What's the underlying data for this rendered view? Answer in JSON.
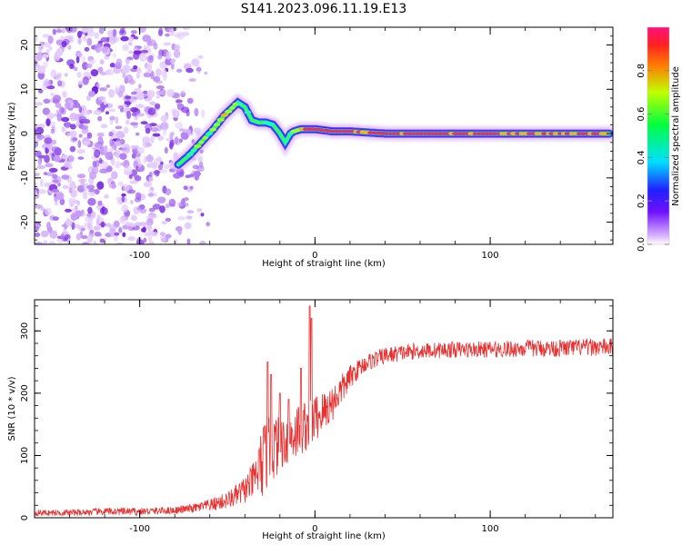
{
  "figure_title": "S141.2023.096.11.19.E13",
  "chart_data": [
    {
      "type": "heatmap",
      "title": "",
      "xlabel": "Height of straight line (km)",
      "ylabel": "Frequency (Hz)",
      "xlim": [
        -160,
        170
      ],
      "ylim": [
        -25,
        24
      ],
      "x_ticks": [
        {
          "value": -100,
          "label": "-100"
        },
        {
          "value": 0,
          "label": "0"
        },
        {
          "value": 100,
          "label": "100"
        }
      ],
      "y_ticks": [
        {
          "value": -20,
          "label": "-20"
        },
        {
          "value": -10,
          "label": "-10"
        },
        {
          "value": 0,
          "label": "0"
        },
        {
          "value": 10,
          "label": "10"
        },
        {
          "value": 20,
          "label": "20"
        }
      ],
      "colorbar": {
        "label": "Normalized spectral amplitude",
        "range": [
          0,
          1
        ],
        "ticks": [
          {
            "value": 0.0,
            "label": "0.0"
          },
          {
            "value": 0.2,
            "label": "0.2"
          },
          {
            "value": 0.4,
            "label": "0.4"
          },
          {
            "value": 0.6,
            "label": "0.6"
          },
          {
            "value": 0.8,
            "label": "0.8"
          }
        ]
      },
      "noise_region_x": [
        -160,
        -70
      ],
      "ridge": {
        "x": [
          -78,
          -72,
          -65,
          -58,
          -52,
          -48,
          -44,
          -40,
          -36,
          -32,
          -28,
          -24,
          -20,
          -17,
          -14,
          -12,
          -8,
          0,
          10,
          20,
          40,
          60,
          80,
          100,
          120,
          140,
          160,
          168
        ],
        "freq": [
          -7,
          -5,
          -2,
          1,
          4,
          5.5,
          7,
          6,
          3,
          2.5,
          2.5,
          2,
          0,
          -2,
          0,
          0.5,
          1,
          1,
          0.5,
          0.5,
          0,
          0,
          0,
          0,
          0,
          0,
          0,
          0
        ],
        "amplitude": [
          0.3,
          0.45,
          0.5,
          0.55,
          0.6,
          0.5,
          0.55,
          0.4,
          0.35,
          0.4,
          0.5,
          0.4,
          0.3,
          0.45,
          0.5,
          0.55,
          0.8,
          0.85,
          0.85,
          0.8,
          0.85,
          0.85,
          0.85,
          0.85,
          0.8,
          0.8,
          0.75,
          0.7
        ]
      },
      "colors": {
        "low": "#d9b3ff",
        "mid_low": "#2020ff",
        "mid": "#00e0ff",
        "mid_high": "#00ff00",
        "high": "#e02060"
      }
    },
    {
      "type": "line",
      "title": "",
      "xlabel": "Height of straight line (km)",
      "ylabel": "SNR (10 * v/v)",
      "xlim": [
        -160,
        170
      ],
      "ylim": [
        0,
        350
      ],
      "x_ticks": [
        {
          "value": -100,
          "label": "-100"
        },
        {
          "value": 0,
          "label": "0"
        },
        {
          "value": 100,
          "label": "100"
        }
      ],
      "y_ticks": [
        {
          "value": 0,
          "label": "0"
        },
        {
          "value": 100,
          "label": "100"
        },
        {
          "value": 200,
          "label": "200"
        },
        {
          "value": 300,
          "label": "300"
        }
      ],
      "series_color": "#e83030",
      "envelope": {
        "x": [
          -160,
          -140,
          -120,
          -100,
          -80,
          -70,
          -60,
          -50,
          -45,
          -40,
          -35,
          -30,
          -25,
          -20,
          -15,
          -10,
          -5,
          0,
          5,
          10,
          15,
          20,
          25,
          30,
          40,
          50,
          60,
          80,
          100,
          120,
          140,
          160,
          170
        ],
        "mean": [
          8,
          8,
          10,
          10,
          12,
          15,
          20,
          28,
          35,
          45,
          60,
          90,
          110,
          120,
          130,
          140,
          150,
          160,
          170,
          185,
          205,
          225,
          240,
          250,
          260,
          265,
          268,
          270,
          270,
          272,
          272,
          274,
          274
        ],
        "jitter": [
          5,
          5,
          6,
          6,
          6,
          7,
          10,
          14,
          18,
          22,
          30,
          60,
          55,
          45,
          45,
          45,
          45,
          40,
          35,
          30,
          25,
          20,
          15,
          14,
          14,
          13,
          13,
          13,
          13,
          14,
          14,
          14,
          14
        ]
      },
      "spikes": [
        {
          "x": -27,
          "value": 250
        },
        {
          "x": -25,
          "value": 230
        },
        {
          "x": -20,
          "value": 200
        },
        {
          "x": -15,
          "value": 190
        },
        {
          "x": -8,
          "value": 240
        },
        {
          "x": -3,
          "value": 340
        },
        {
          "x": -2,
          "value": 320
        }
      ]
    }
  ]
}
